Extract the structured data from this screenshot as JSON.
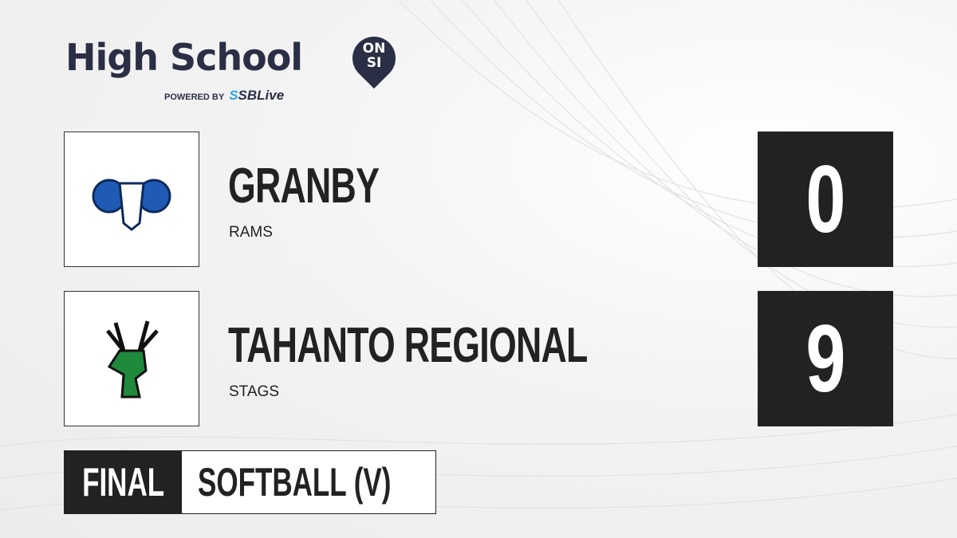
{
  "brand": {
    "title": "High School",
    "badge_top": "ON",
    "badge_bottom": "SI",
    "powered_by": "POWERED BY",
    "partner_prefix": "S",
    "partner": "SBLive"
  },
  "teams": [
    {
      "name": "GRANBY",
      "mascot": "RAMS",
      "score": "0",
      "logo_color": "#1f5bb5"
    },
    {
      "name": "TAHANTO REGIONAL",
      "mascot": "STAGS",
      "score": "9",
      "logo_color": "#1f8a3c"
    }
  ],
  "game": {
    "status": "FINAL",
    "sport": "SOFTBALL (V)"
  }
}
